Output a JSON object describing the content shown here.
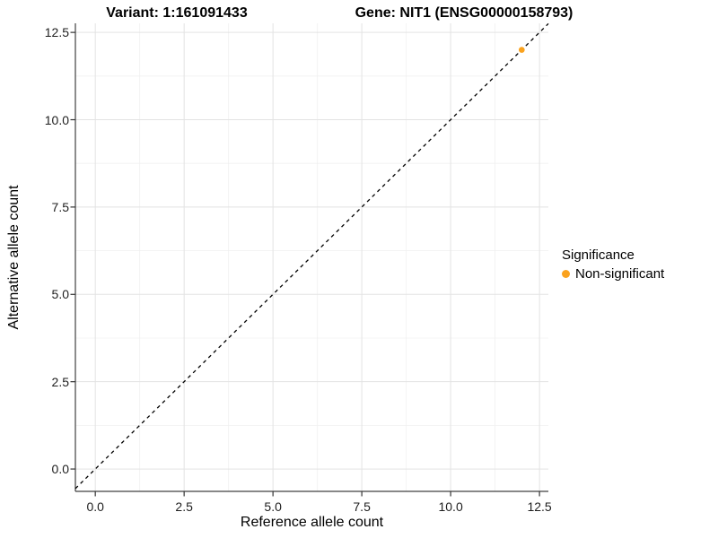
{
  "chart_data": {
    "type": "scatter",
    "titles": {
      "variant": "Variant: 1:161091433",
      "gene": "Gene: NIT1 (ENSG00000158793)"
    },
    "xlabel": "Reference allele count",
    "ylabel": "Alternative allele count",
    "xlim": [
      -0.56,
      12.75
    ],
    "ylim": [
      -0.64,
      12.76
    ],
    "x_breaks": [
      0,
      2.5,
      5,
      7.5,
      10,
      12.5
    ],
    "x_tick_labels": [
      "0.0",
      "2.5",
      "5.0",
      "7.5",
      "10.0",
      "12.5"
    ],
    "x_minor_breaks": [
      1.25,
      3.75,
      6.25,
      8.75,
      11.25
    ],
    "y_breaks": [
      0,
      2.5,
      5,
      7.5,
      10,
      12.5
    ],
    "y_tick_labels": [
      "0.0",
      "2.5",
      "5.0",
      "7.5",
      "10.0",
      "12.5"
    ],
    "y_minor_breaks": [
      1.25,
      3.75,
      6.25,
      8.75,
      11.25
    ],
    "grid": true,
    "points": [
      {
        "x": 12,
        "y": 12,
        "series": "Non-significant"
      }
    ],
    "reference_line": {
      "slope": 1,
      "intercept": 0,
      "style": "dashed",
      "color": "#000000"
    },
    "legend": {
      "position": "right",
      "title": "Significance",
      "entries": [
        {
          "label": "Non-significant",
          "color": "#FAA21E",
          "marker": "circle"
        }
      ]
    },
    "colors": {
      "point": "#FAA21E",
      "axis_line": "#404040",
      "tick_mark": "#333333",
      "grid_major": "#E3E3E3",
      "grid_minor": "#F0F0F0",
      "tick_text": "#1f1f1f",
      "title_text": "#000000",
      "background": "#FFFFFF"
    }
  }
}
